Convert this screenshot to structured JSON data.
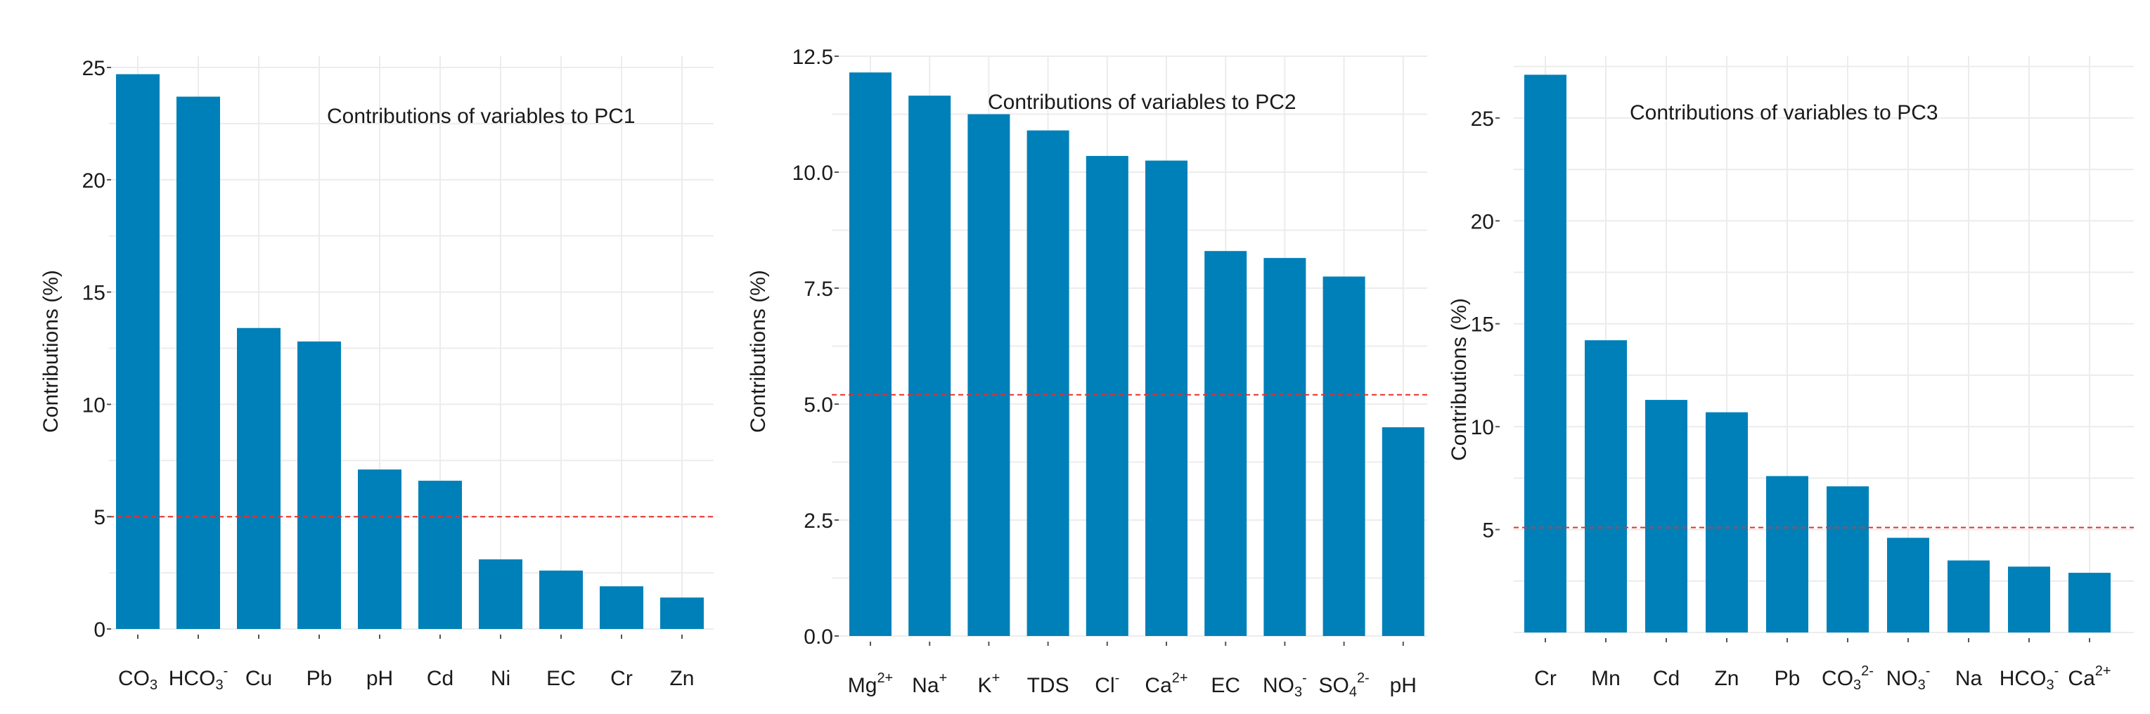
{
  "chart_data": [
    {
      "type": "bar",
      "title": "Contributions of variables to PC1",
      "ylabel": "Contributions (%)",
      "xlabel": "",
      "categories": [
        "CO3",
        "HCO3-",
        "Cu",
        "Pb",
        "pH",
        "Cd",
        "Ni",
        "EC",
        "Cr",
        "Zn"
      ],
      "tick_labels": [
        {
          "base": "CO",
          "sub": "3",
          "sup": ""
        },
        {
          "base": "HCO",
          "sub": "3",
          "sup": "-"
        },
        {
          "base": "Cu",
          "sub": "",
          "sup": ""
        },
        {
          "base": "Pb",
          "sub": "",
          "sup": ""
        },
        {
          "base": "pH",
          "sub": "",
          "sup": ""
        },
        {
          "base": "Cd",
          "sub": "",
          "sup": ""
        },
        {
          "base": "Ni",
          "sub": "",
          "sup": ""
        },
        {
          "base": "EC",
          "sub": "",
          "sup": ""
        },
        {
          "base": "Cr",
          "sub": "",
          "sup": ""
        },
        {
          "base": "Zn",
          "sub": "",
          "sup": ""
        }
      ],
      "values": [
        24.7,
        23.7,
        13.4,
        12.8,
        7.1,
        6.6,
        3.1,
        2.6,
        1.9,
        1.4
      ],
      "ylim": [
        0,
        25.5
      ],
      "yticks": [
        0,
        5,
        10,
        15,
        20,
        25
      ],
      "ytick_labels": [
        "0",
        "5",
        "10",
        "15",
        "20",
        "25"
      ],
      "reference_line": 5.0,
      "grid": true,
      "bar_color": "#0080b8",
      "ref_color": "#e8302a"
    },
    {
      "type": "bar",
      "title": "Contributions of variables to PC2",
      "ylabel": "Contributions (%)",
      "xlabel": "",
      "categories": [
        "Mg2+",
        "Na+",
        "K+",
        "TDS",
        "Cl-",
        "Ca2+",
        "EC",
        "NO3-",
        "SO42-",
        "pH"
      ],
      "tick_labels": [
        {
          "base": "Mg",
          "sub": "",
          "sup": "2+"
        },
        {
          "base": "Na",
          "sub": "",
          "sup": "+"
        },
        {
          "base": "K",
          "sub": "",
          "sup": "+"
        },
        {
          "base": "TDS",
          "sub": "",
          "sup": ""
        },
        {
          "base": "Cl",
          "sub": "",
          "sup": "-"
        },
        {
          "base": "Ca",
          "sub": "",
          "sup": "2+"
        },
        {
          "base": "EC",
          "sub": "",
          "sup": ""
        },
        {
          "base": "NO",
          "sub": "3",
          "sup": "-"
        },
        {
          "base": "SO",
          "sub": "4",
          "sup": "2-"
        },
        {
          "base": "pH",
          "sub": "",
          "sup": ""
        }
      ],
      "values": [
        12.15,
        11.65,
        11.25,
        10.9,
        10.35,
        10.25,
        8.3,
        8.15,
        7.75,
        4.5
      ],
      "ylim": [
        0,
        12.5
      ],
      "yticks": [
        0,
        2.5,
        5,
        7.5,
        10,
        12.5
      ],
      "ytick_labels": [
        "0.0",
        "2.5",
        "5.0",
        "7.5",
        "10.0",
        "12.5"
      ],
      "reference_line": 5.2,
      "grid": true,
      "bar_color": "#0080b8",
      "ref_color": "#e8302a"
    },
    {
      "type": "bar",
      "title": "Contributions of variables to PC3",
      "ylabel": "Contributions (%)",
      "xlabel": "",
      "categories": [
        "Cr",
        "Mn",
        "Cd",
        "Zn",
        "Pb",
        "CO32-",
        "NO3-",
        "Na",
        "HCO3-",
        "Ca2+"
      ],
      "tick_labels": [
        {
          "base": "Cr",
          "sub": "",
          "sup": ""
        },
        {
          "base": "Mn",
          "sub": "",
          "sup": ""
        },
        {
          "base": "Cd",
          "sub": "",
          "sup": ""
        },
        {
          "base": "Zn",
          "sub": "",
          "sup": ""
        },
        {
          "base": "Pb",
          "sub": "",
          "sup": ""
        },
        {
          "base": "CO",
          "sub": "3",
          "sup": "2-"
        },
        {
          "base": "NO",
          "sub": "3",
          "sup": "-"
        },
        {
          "base": "Na",
          "sub": "",
          "sup": ""
        },
        {
          "base": "HCO",
          "sub": "3",
          "sup": "-"
        },
        {
          "base": "Ca",
          "sub": "",
          "sup": "2+"
        }
      ],
      "values": [
        27.1,
        14.2,
        11.3,
        10.7,
        7.6,
        7.1,
        4.6,
        3.5,
        3.2,
        2.9
      ],
      "ylim": [
        0,
        28
      ],
      "yticks": [
        5,
        10,
        15,
        20,
        25
      ],
      "ytick_labels": [
        "5",
        "10",
        "15",
        "20",
        "25"
      ],
      "reference_line": 5.1,
      "grid": true,
      "bar_color": "#0080b8",
      "ref_color": "#e8302a"
    }
  ]
}
